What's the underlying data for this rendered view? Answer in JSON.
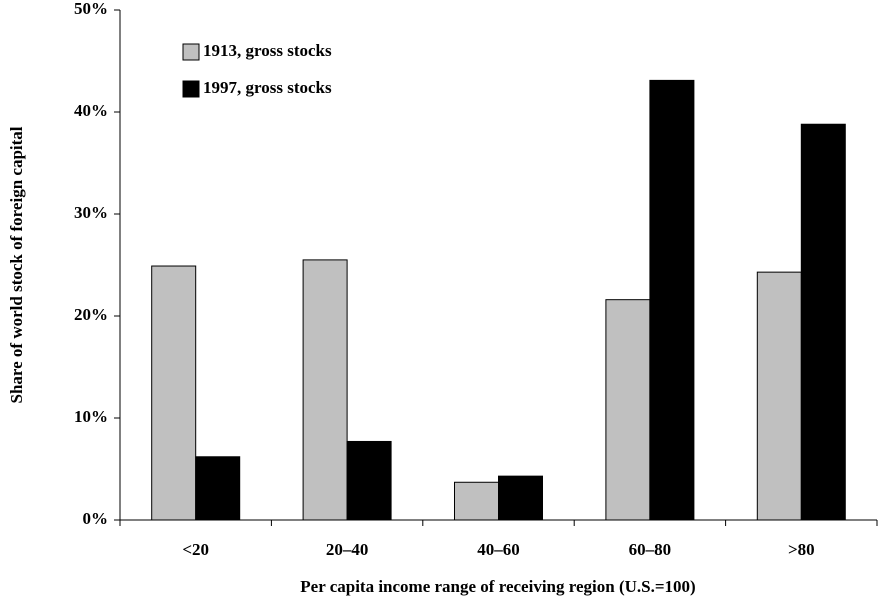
{
  "chart_data": {
    "type": "bar",
    "x_label": "Per capita income range of receiving region (U.S.=100)",
    "y_label": "Share of world stock of foreign capital",
    "categories": [
      "<20",
      "20–40",
      "40–60",
      "60–80",
      ">80"
    ],
    "series": [
      {
        "name": "1913, gross stocks",
        "color": "#c0c0c0",
        "values": [
          24.9,
          25.5,
          3.7,
          21.6,
          24.3
        ]
      },
      {
        "name": "1997, gross stocks",
        "color": "#000000",
        "values": [
          6.2,
          7.7,
          4.3,
          43.1,
          38.8
        ]
      }
    ],
    "ylim": [
      0,
      50
    ],
    "yticks": [
      {
        "value": 0,
        "label": "0%"
      },
      {
        "value": 10,
        "label": "10%"
      },
      {
        "value": 20,
        "label": "20%"
      },
      {
        "value": 30,
        "label": "30%"
      },
      {
        "value": 40,
        "label": "40%"
      },
      {
        "value": 50,
        "label": "50%"
      }
    ],
    "legend": "upper left"
  }
}
